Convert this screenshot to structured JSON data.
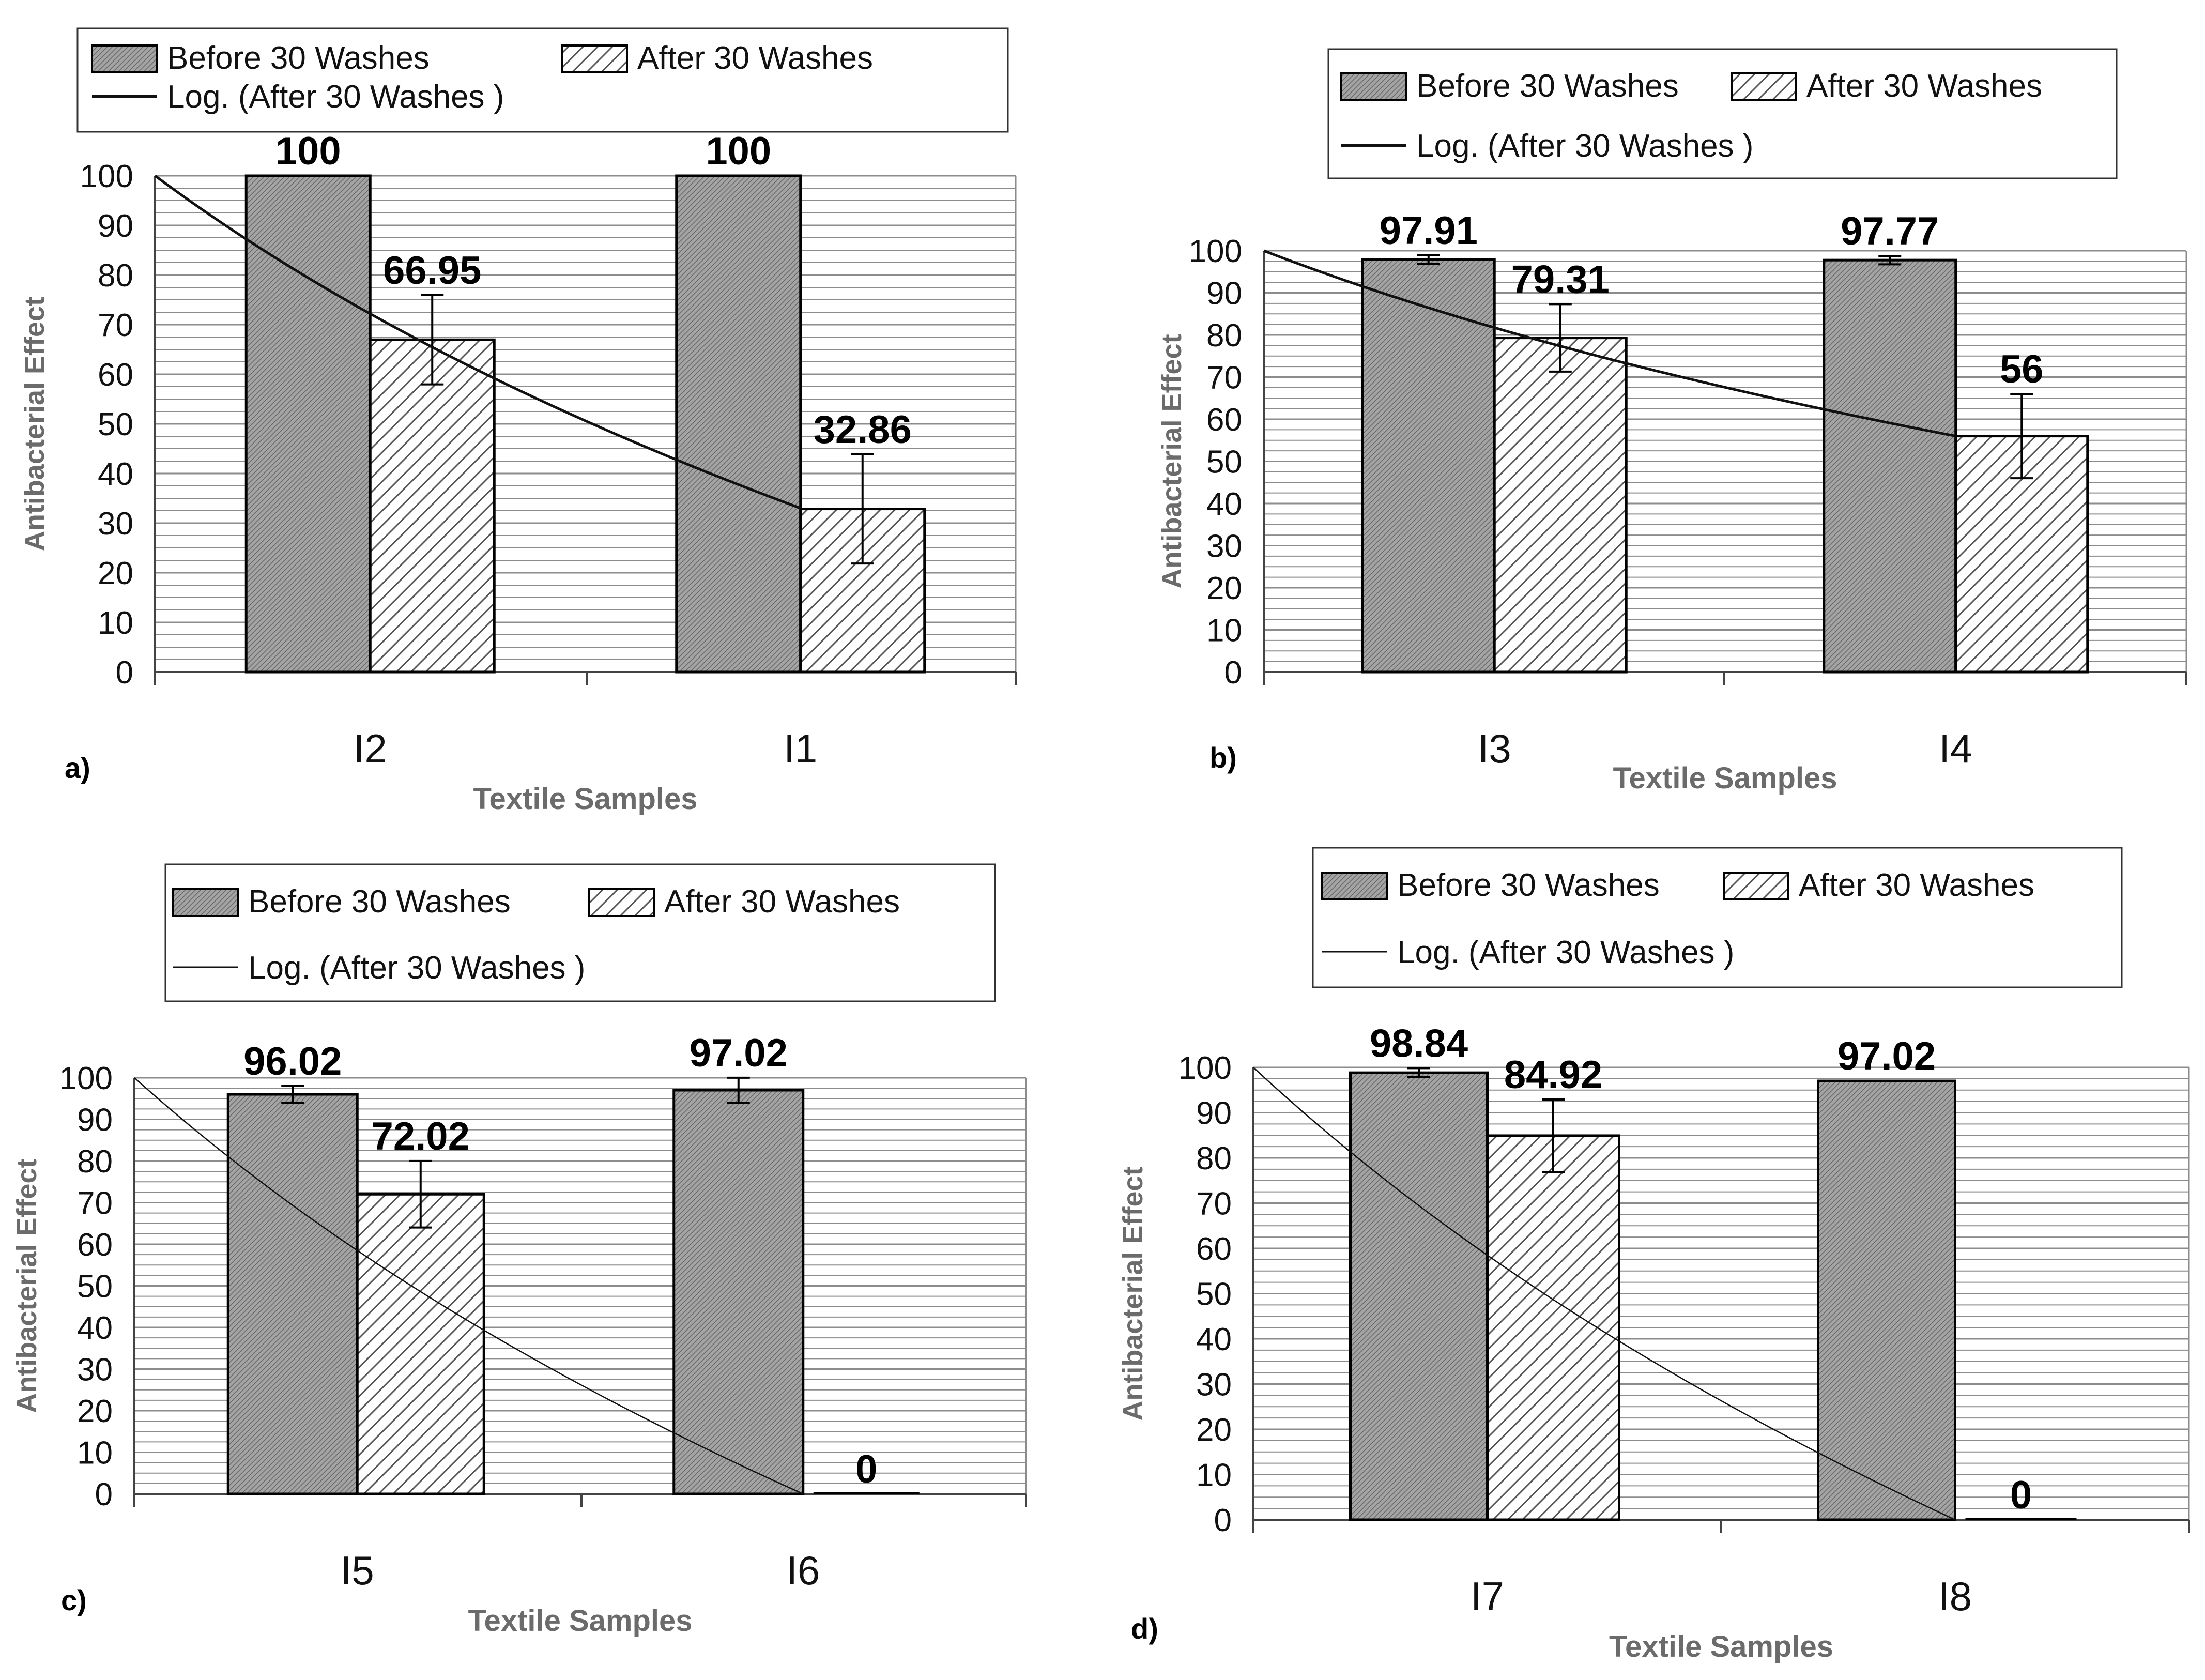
{
  "chart_data": [
    {
      "panel_label": "a)",
      "type": "bar",
      "categories": [
        "I2",
        "I1"
      ],
      "series": [
        {
          "name": "Before 30 Washes",
          "values": [
            100,
            100
          ],
          "labels": [
            "100",
            "100"
          ],
          "errors": [
            0,
            0
          ],
          "fill": "dense"
        },
        {
          "name": "After 30 Washes",
          "values": [
            66.95,
            32.86
          ],
          "labels": [
            "66.95",
            "32.86"
          ],
          "errors": [
            9,
            11
          ],
          "fill": "hatch"
        }
      ],
      "trendline": {
        "name": "Log. (After 30 Washes )",
        "type": "logarithmic",
        "start": 100,
        "end": 33
      },
      "xlabel": "Textile Samples",
      "ylabel": "Antibacterial Effect",
      "ylim": [
        0,
        100
      ],
      "yticks": [
        "0",
        "10",
        "20",
        "30",
        "40",
        "50",
        "60",
        "70",
        "80",
        "90",
        "100"
      ],
      "grid": true,
      "legend_position": "top"
    },
    {
      "panel_label": "b)",
      "type": "bar",
      "categories": [
        "I3",
        "I4"
      ],
      "series": [
        {
          "name": "Before 30 Washes",
          "values": [
            97.91,
            97.77
          ],
          "labels": [
            "97.91",
            "97.77"
          ],
          "errors": [
            1,
            1
          ],
          "fill": "dense"
        },
        {
          "name": "After 30 Washes",
          "values": [
            79.31,
            56
          ],
          "labels": [
            "79.31",
            "56"
          ],
          "errors": [
            8,
            10
          ],
          "fill": "hatch"
        }
      ],
      "trendline": {
        "name": "Log. (After 30  Washes )",
        "type": "logarithmic",
        "start": 100,
        "end": 56
      },
      "xlabel": "Textile Samples",
      "ylabel": "Antibacterial Effect",
      "ylim": [
        0,
        100
      ],
      "yticks": [
        "0",
        "10",
        "20",
        "30",
        "40",
        "50",
        "60",
        "70",
        "80",
        "90",
        "100"
      ],
      "grid": true,
      "legend_position": "top"
    },
    {
      "panel_label": "c)",
      "type": "bar",
      "categories": [
        "I5",
        "I6"
      ],
      "series": [
        {
          "name": "Before 30 Washes",
          "values": [
            96.02,
            97.02
          ],
          "labels": [
            "96.02",
            "97.02"
          ],
          "errors": [
            2,
            3
          ],
          "fill": "dense"
        },
        {
          "name": "After 30  Washes",
          "values": [
            72.02,
            0
          ],
          "labels": [
            "72.02",
            "0"
          ],
          "errors": [
            8,
            0
          ],
          "fill": "hatch"
        }
      ],
      "trendline": {
        "name": "Log. (After 30 Washes )",
        "type": "logarithmic",
        "start": 100,
        "end": 0
      },
      "xlabel": "Textile Samples",
      "ylabel": "Antibacterial Effect",
      "ylim": [
        0,
        100
      ],
      "yticks": [
        "0",
        "10",
        "20",
        "30",
        "40",
        "50",
        "60",
        "70",
        "80",
        "90",
        "100"
      ],
      "grid": true,
      "legend_position": "top"
    },
    {
      "panel_label": "d)",
      "type": "bar",
      "categories": [
        "I7",
        "I8"
      ],
      "series": [
        {
          "name": "Before 30  Washes",
          "values": [
            98.84,
            97.02
          ],
          "labels": [
            "98.84",
            "97.02"
          ],
          "errors": [
            1,
            0
          ],
          "fill": "dense"
        },
        {
          "name": "After 30  Washes",
          "values": [
            84.92,
            0
          ],
          "labels": [
            "84.92",
            "0"
          ],
          "errors": [
            8,
            0
          ],
          "fill": "hatch"
        }
      ],
      "trendline": {
        "name": "Log. (After 30  Washes )",
        "type": "logarithmic",
        "start": 100,
        "end": 0
      },
      "xlabel": "Textile Samples",
      "ylabel": "Antibacterial Effect",
      "ylim": [
        0,
        100
      ],
      "yticks": [
        "0",
        "10",
        "20",
        "30",
        "40",
        "50",
        "60",
        "70",
        "80",
        "90",
        "100"
      ],
      "grid": true,
      "legend_position": "top"
    }
  ],
  "colors": {
    "before_fill": "#9a9a9a",
    "after_fill": "#ffffff",
    "hatch_stroke": "#555555",
    "grid": "#8c8c8c",
    "bar_outline": "#000000"
  }
}
